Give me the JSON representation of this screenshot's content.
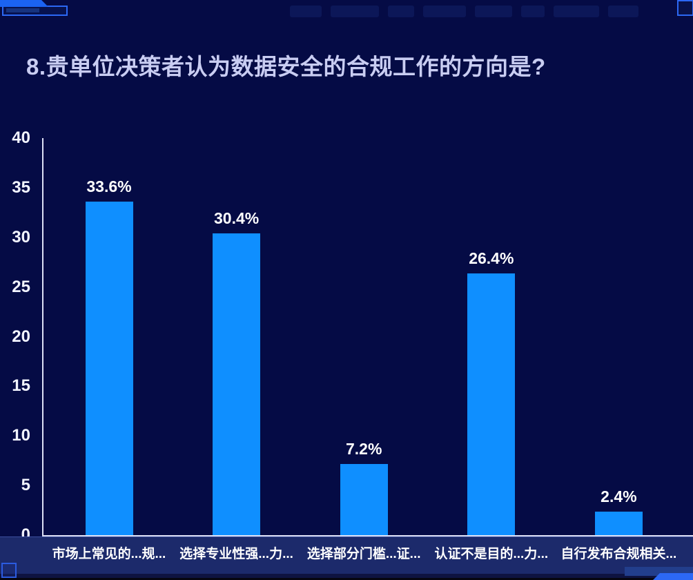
{
  "colors": {
    "background": "#050b45",
    "bar": "#0f8fff",
    "title_text": "#c9cdf2",
    "axis_line": "#dde1f5",
    "tick_text": "#f2f4ff",
    "value_label_text": "#ffffff",
    "xlabel_band_bg": "#1c2a6b",
    "xlabel_text": "#ffffff",
    "ornament_bright": "#2c68f5",
    "ornament_mid": "#223e8c"
  },
  "chart_data": {
    "type": "bar",
    "title": "8.贵单位决策者认为数据安全的合规工作的方向是?",
    "categories": [
      "市场上常见的...规...",
      "选择专业性强...力...",
      "选择部分门槛...证...",
      "认证不是目的...力...",
      "自行发布合规相关..."
    ],
    "values": [
      33.6,
      30.4,
      7.2,
      26.4,
      2.4
    ],
    "value_labels": [
      "33.6%",
      "30.4%",
      "7.2%",
      "26.4%",
      "2.4%"
    ],
    "xlabel": "",
    "ylabel": "",
    "ylim": [
      0,
      40
    ],
    "yticks": [
      0,
      5,
      10,
      15,
      20,
      25,
      30,
      35,
      40
    ],
    "grid": false,
    "legend": null,
    "bar_color": "#0f8fff"
  }
}
